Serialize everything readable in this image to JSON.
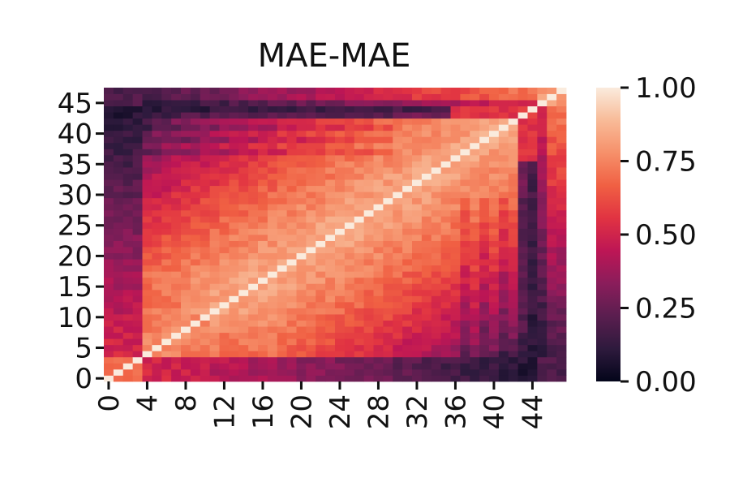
{
  "chart_data": {
    "type": "heatmap",
    "title": "MAE-MAE",
    "xlabel": "",
    "ylabel": "",
    "size": 48,
    "x_tick_labels": [
      "0",
      "4",
      "8",
      "12",
      "16",
      "20",
      "24",
      "28",
      "32",
      "36",
      "40",
      "44"
    ],
    "y_tick_labels": [
      "0",
      "5",
      "10",
      "15",
      "20",
      "25",
      "30",
      "35",
      "40",
      "45"
    ],
    "colorbar": {
      "min": 0.0,
      "max": 1.0,
      "tick_labels": [
        "0.00",
        "0.25",
        "0.50",
        "0.75",
        "1.00"
      ],
      "colormap": "rocket",
      "colormap_stops": [
        "#03051a",
        "#2e1a3d",
        "#5a1e4f",
        "#8a1d5b",
        "#bd1655",
        "#e13342",
        "#f06043",
        "#f6906a",
        "#f8bb98",
        "#faebdd"
      ]
    },
    "value_model": {
      "description": "Approximate 48x48 correlation matrix of layer index pairs; symmetric, diagonal = 1.0",
      "blocks": [
        {
          "range": [
            0,
            3
          ],
          "value": 0.72
        },
        {
          "range": [
            4,
            44
          ],
          "value": 0.62
        },
        {
          "range": [
            45,
            47
          ],
          "value": 0.8
        }
      ],
      "diagonal": 1.0
    }
  }
}
